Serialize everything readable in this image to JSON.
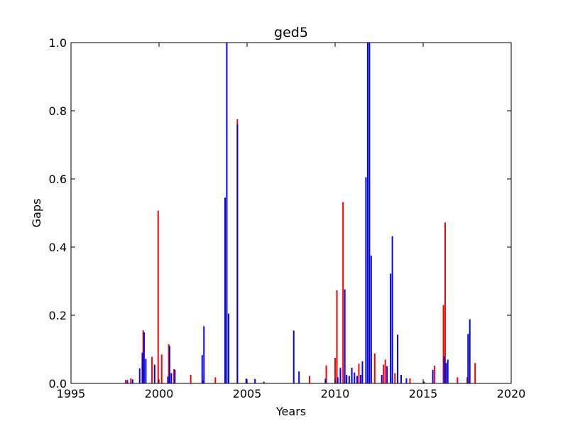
{
  "chart_data": {
    "type": "bar",
    "title": "ged5",
    "xlabel": "Years",
    "ylabel": "Gaps",
    "xlim": [
      1995,
      2020
    ],
    "ylim": [
      0,
      1.0
    ],
    "x_ticks": [
      "1995",
      "2000",
      "2005",
      "2010",
      "2015",
      "2020"
    ],
    "y_ticks": [
      "0.0",
      "0.2",
      "0.4",
      "0.6",
      "0.8",
      "1.0"
    ],
    "grid": false,
    "legend": "none",
    "colors": {
      "red": "#ff0000",
      "blue": "#0000ff"
    },
    "bar_width_years": 0.08,
    "series": [
      {
        "color": "red",
        "points": [
          [
            1998.1,
            0.01
          ],
          [
            1998.4,
            0.015
          ],
          [
            1999.1,
            0.156
          ],
          [
            1999.6,
            0.078
          ],
          [
            1999.95,
            0.507
          ],
          [
            2000.15,
            0.085
          ],
          [
            2000.55,
            0.115
          ],
          [
            2000.85,
            0.042
          ],
          [
            2001.8,
            0.025
          ],
          [
            2002.5,
            0.009
          ],
          [
            2003.2,
            0.018
          ],
          [
            2004.45,
            0.775
          ],
          [
            2008.55,
            0.022
          ],
          [
            2009.5,
            0.053
          ],
          [
            2010.0,
            0.075
          ],
          [
            2010.1,
            0.273
          ],
          [
            2010.3,
            0.046
          ],
          [
            2010.45,
            0.532
          ],
          [
            2010.65,
            0.02
          ],
          [
            2011.35,
            0.058
          ],
          [
            2012.25,
            0.088
          ],
          [
            2012.75,
            0.055
          ],
          [
            2012.85,
            0.07
          ],
          [
            2013.4,
            0.03
          ],
          [
            2014.25,
            0.015
          ],
          [
            2015.65,
            0.052
          ],
          [
            2016.15,
            0.23
          ],
          [
            2016.25,
            0.472
          ],
          [
            2016.95,
            0.018
          ],
          [
            2017.5,
            0.018
          ],
          [
            2017.95,
            0.06
          ]
        ]
      },
      {
        "color": "blue",
        "points": [
          [
            1998.2,
            0.01
          ],
          [
            1998.5,
            0.012
          ],
          [
            1998.9,
            0.044
          ],
          [
            1999.05,
            0.09
          ],
          [
            1999.15,
            0.15
          ],
          [
            1999.25,
            0.072
          ],
          [
            1999.75,
            0.055
          ],
          [
            2000.5,
            0.02
          ],
          [
            2000.6,
            0.11
          ],
          [
            2000.7,
            0.03
          ],
          [
            2000.9,
            0.04
          ],
          [
            2002.45,
            0.083
          ],
          [
            2002.55,
            0.168
          ],
          [
            2003.75,
            0.545
          ],
          [
            2003.85,
            1.0
          ],
          [
            2003.95,
            0.205
          ],
          [
            2004.45,
            0.76
          ],
          [
            2004.95,
            0.014
          ],
          [
            2005.45,
            0.013
          ],
          [
            2005.95,
            0.005
          ],
          [
            2007.65,
            0.155
          ],
          [
            2007.95,
            0.035
          ],
          [
            2009.45,
            0.014
          ],
          [
            2010.15,
            0.018
          ],
          [
            2010.3,
            0.044
          ],
          [
            2010.55,
            0.276
          ],
          [
            2010.65,
            0.025
          ],
          [
            2010.8,
            0.022
          ],
          [
            2010.95,
            0.046
          ],
          [
            2011.1,
            0.032
          ],
          [
            2011.25,
            0.022
          ],
          [
            2011.45,
            0.025
          ],
          [
            2011.55,
            0.065
          ],
          [
            2011.75,
            0.605
          ],
          [
            2011.85,
            1.0
          ],
          [
            2011.95,
            1.0
          ],
          [
            2012.05,
            0.375
          ],
          [
            2012.65,
            0.025
          ],
          [
            2012.95,
            0.05
          ],
          [
            2013.15,
            0.322
          ],
          [
            2013.25,
            0.432
          ],
          [
            2013.55,
            0.143
          ],
          [
            2013.75,
            0.025
          ],
          [
            2014.05,
            0.015
          ],
          [
            2015.05,
            0.005
          ],
          [
            2015.55,
            0.04
          ],
          [
            2016.2,
            0.08
          ],
          [
            2016.3,
            0.06
          ],
          [
            2016.4,
            0.07
          ],
          [
            2017.55,
            0.145
          ],
          [
            2017.65,
            0.188
          ]
        ]
      }
    ]
  }
}
